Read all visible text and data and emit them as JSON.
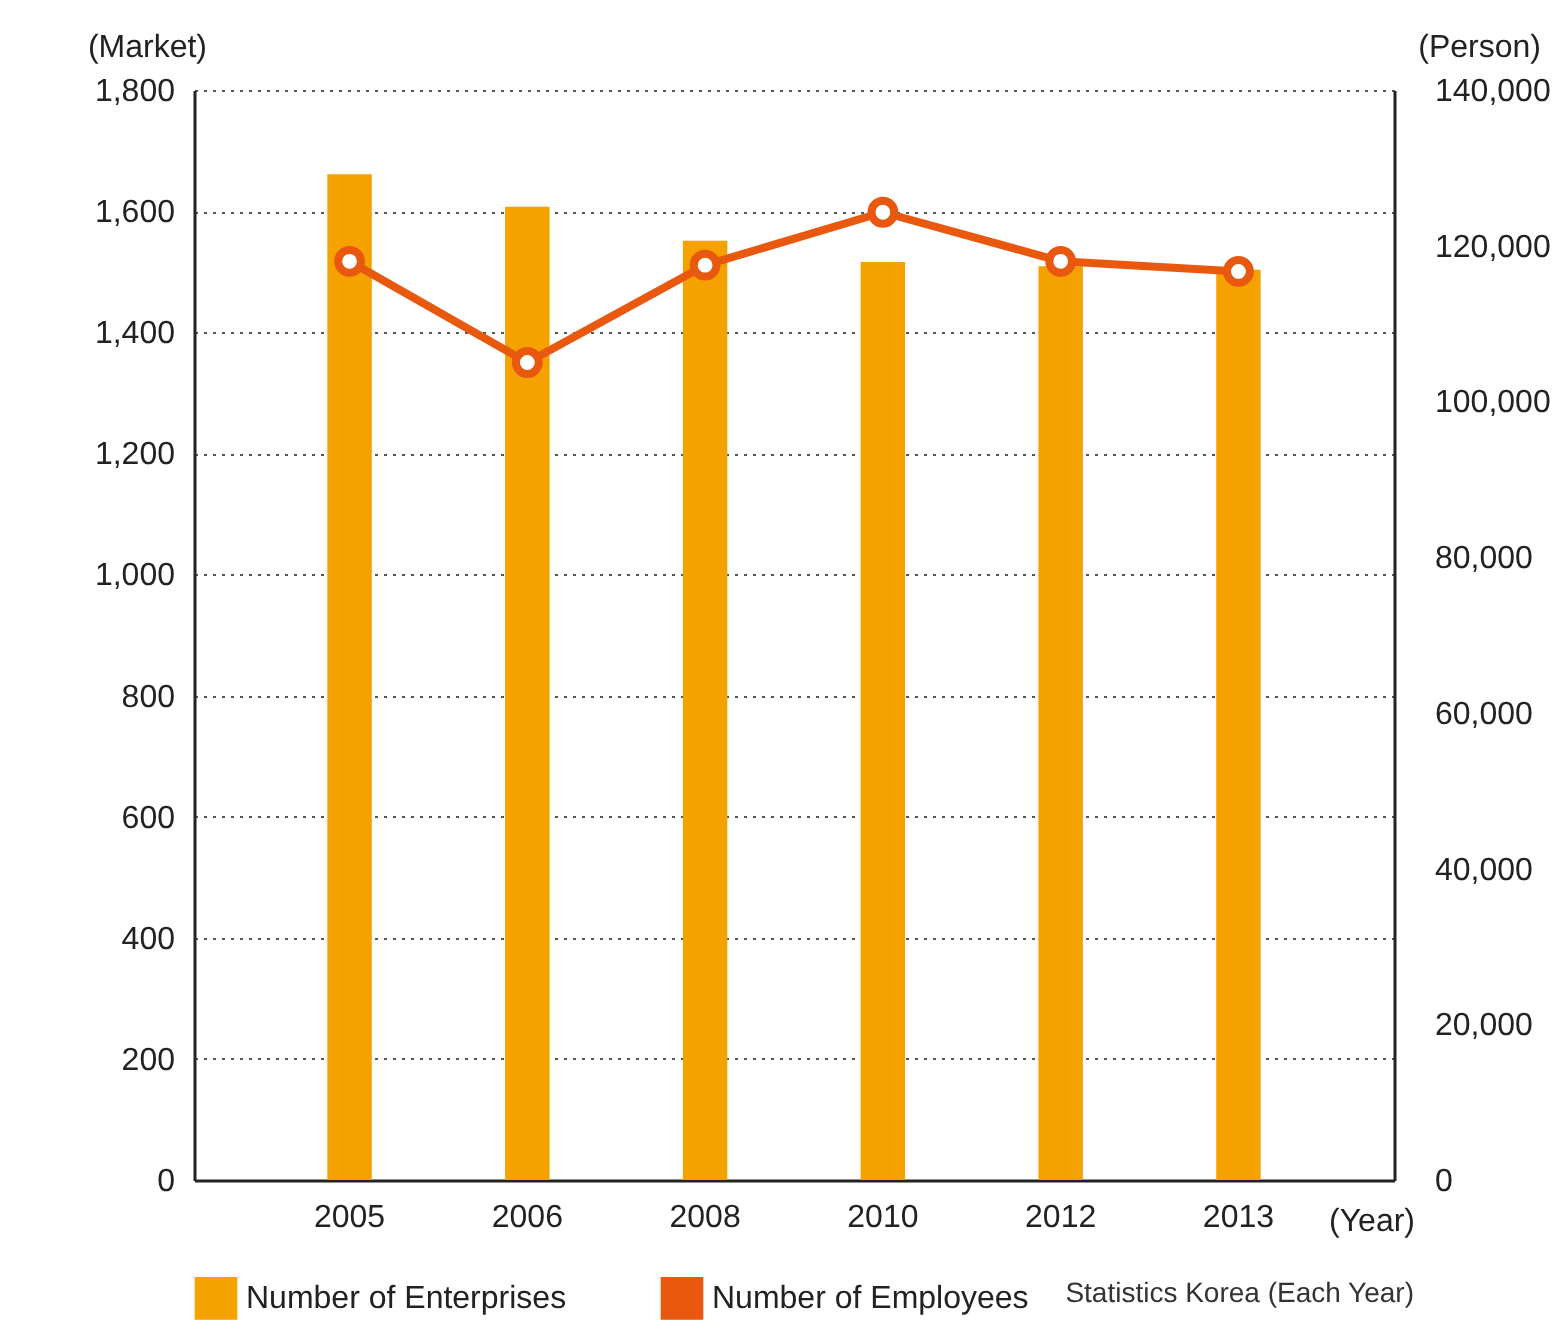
{
  "chart_data": {
    "type": "bar",
    "categories": [
      "2005",
      "2006",
      "2008",
      "2010",
      "2012",
      "2013"
    ],
    "xlabel": "(Year)",
    "ylabel": "(Market)",
    "y2label": "(Person)",
    "series": [
      {
        "name": "Number of Enterprises",
        "color": "#f5a100",
        "values": [
          1661,
          1607,
          1551,
          1516,
          1509,
          1503
        ]
      },
      {
        "name": "Number of Employees",
        "type": "line",
        "axis": "y2",
        "color": "#e8580f",
        "values": [
          118000,
          105000,
          117500,
          124300,
          118000,
          116700
        ]
      }
    ],
    "ylim": [
      0,
      1800
    ],
    "yticks": [
      0,
      200,
      400,
      600,
      800,
      {
        "value": 1000,
        "label": "1,000"
      },
      {
        "value": 1200,
        "label": "1,200"
      },
      {
        "value": 1400,
        "label": "1,400"
      },
      {
        "value": 1600,
        "label": "1,600"
      },
      {
        "value": 1800,
        "label": "1,800"
      }
    ],
    "y2lim": [
      0,
      140000
    ],
    "y2ticks": [
      0,
      {
        "value": 20000,
        "label": "20,000"
      },
      {
        "value": 40000,
        "label": "40,000"
      },
      {
        "value": 60000,
        "label": "60,000"
      },
      {
        "value": 80000,
        "label": "80,000"
      },
      {
        "value": 100000,
        "label": "100,000"
      },
      {
        "value": 120000,
        "label": "120,000"
      },
      {
        "value": 140000,
        "label": "140,000"
      }
    ],
    "grid": "y",
    "legend": "bottom",
    "marker": "circle",
    "line_style": "solid",
    "annotations": [
      "Statistics Korea (Each Year)"
    ]
  }
}
